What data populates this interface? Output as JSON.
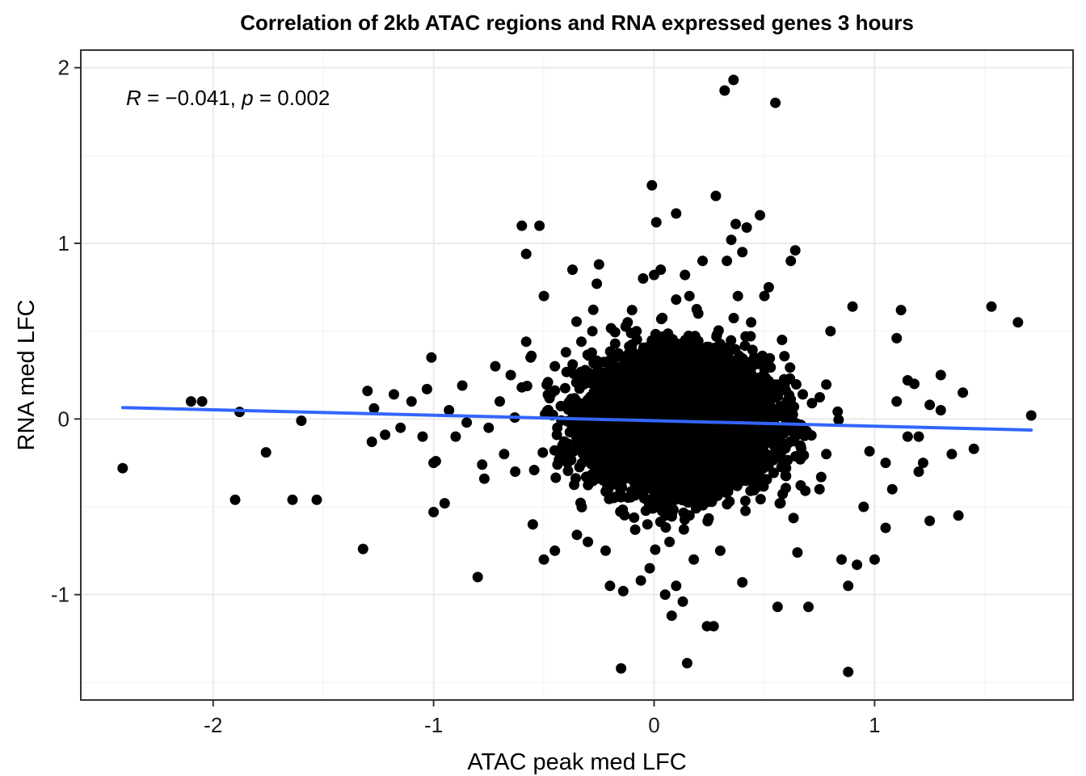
{
  "chart_data": {
    "type": "scatter",
    "title": "Correlation of 2kb ATAC regions and RNA expressed genes 3 hours",
    "xlabel": "ATAC peak med LFC",
    "ylabel": "RNA med LFC",
    "xlim": [
      -2.6,
      1.9
    ],
    "ylim": [
      -1.6,
      2.1
    ],
    "x_ticks": [
      -2,
      -1,
      0,
      1
    ],
    "y_ticks": [
      -1,
      0,
      1,
      2
    ],
    "x_tick_labels": [
      "-2",
      "-1",
      "0",
      "1"
    ],
    "y_tick_labels": [
      "-1",
      "0",
      "1",
      "2"
    ],
    "grid": true,
    "point_color": "#000000",
    "annotation": {
      "r_symbol": "R",
      "r_eq": " = ",
      "r_value": "−0.041",
      "sep": ", ",
      "p_symbol": "p",
      "p_eq": " = ",
      "p_value": "0.002"
    },
    "trend_line": {
      "color": "#3366ff",
      "x": [
        -2.41,
        1.71
      ],
      "y": [
        0.065,
        -0.063
      ]
    },
    "dense_cluster": {
      "description_count": 6000,
      "center": [
        0.12,
        -0.02
      ],
      "sd_x": 0.2,
      "sd_y": 0.18
    },
    "series": [
      {
        "points": [
          [
            -2.41,
            -0.28
          ],
          [
            -2.1,
            0.1
          ],
          [
            -2.05,
            0.1
          ],
          [
            -1.9,
            -0.46
          ],
          [
            -1.88,
            0.04
          ],
          [
            -1.76,
            -0.19
          ],
          [
            -1.64,
            -0.46
          ],
          [
            -1.6,
            -0.01
          ],
          [
            -1.53,
            -0.46
          ],
          [
            -1.32,
            -0.74
          ],
          [
            -1.3,
            0.16
          ],
          [
            -1.28,
            -0.13
          ],
          [
            -1.27,
            0.06
          ],
          [
            -1.22,
            -0.09
          ],
          [
            -1.18,
            0.14
          ],
          [
            -1.15,
            -0.05
          ],
          [
            -1.1,
            0.1
          ],
          [
            -1.05,
            -0.1
          ],
          [
            -1.03,
            0.17
          ],
          [
            -1.0,
            -0.25
          ],
          [
            -1.01,
            0.35
          ],
          [
            -1.0,
            -0.53
          ],
          [
            -0.99,
            -0.24
          ],
          [
            -0.95,
            -0.48
          ],
          [
            -0.93,
            0.05
          ],
          [
            -0.9,
            -0.1
          ],
          [
            -0.87,
            0.19
          ],
          [
            -0.85,
            -0.02
          ],
          [
            -0.8,
            -0.9
          ],
          [
            -0.78,
            -0.26
          ],
          [
            -0.77,
            -0.34
          ],
          [
            -0.75,
            -0.05
          ],
          [
            -0.72,
            0.3
          ],
          [
            -0.7,
            0.1
          ],
          [
            -0.68,
            -0.2
          ],
          [
            -0.65,
            0.25
          ],
          [
            -0.63,
            -0.3
          ],
          [
            -0.6,
            0.18
          ],
          [
            -0.58,
            0.44
          ],
          [
            -0.56,
            0.35
          ],
          [
            -0.6,
            1.1
          ],
          [
            -0.58,
            0.94
          ],
          [
            -0.52,
            1.1
          ],
          [
            -0.55,
            -0.6
          ],
          [
            -0.5,
            0.7
          ],
          [
            -0.5,
            -0.8
          ],
          [
            -0.45,
            -0.75
          ],
          [
            -0.45,
            0.3
          ],
          [
            -0.4,
            0.38
          ],
          [
            -0.37,
            0.85
          ],
          [
            -0.35,
            -0.66
          ],
          [
            -0.33,
            0.44
          ],
          [
            -0.3,
            -0.7
          ],
          [
            -0.28,
            0.5
          ],
          [
            -0.26,
            0.77
          ],
          [
            -0.25,
            0.88
          ],
          [
            -0.22,
            -0.75
          ],
          [
            -0.2,
            -0.95
          ],
          [
            -0.15,
            -1.42
          ],
          [
            -0.14,
            -0.98
          ],
          [
            -0.12,
            0.55
          ],
          [
            -0.1,
            0.62
          ],
          [
            -0.08,
            0.5
          ],
          [
            -0.06,
            -0.92
          ],
          [
            -0.05,
            0.8
          ],
          [
            -0.03,
            -0.6
          ],
          [
            -0.02,
            -0.85
          ],
          [
            -0.01,
            1.33
          ],
          [
            0.0,
            0.82
          ],
          [
            0.01,
            1.12
          ],
          [
            0.03,
            0.85
          ],
          [
            0.05,
            -1.0
          ],
          [
            0.07,
            -0.7
          ],
          [
            0.08,
            -1.12
          ],
          [
            0.1,
            -0.95
          ],
          [
            0.1,
            0.68
          ],
          [
            0.1,
            1.17
          ],
          [
            0.13,
            -1.04
          ],
          [
            0.14,
            0.82
          ],
          [
            0.15,
            -1.39
          ],
          [
            0.16,
            0.7
          ],
          [
            0.18,
            -0.8
          ],
          [
            0.2,
            0.6
          ],
          [
            0.22,
            0.9
          ],
          [
            0.24,
            -1.18
          ],
          [
            0.27,
            -1.18
          ],
          [
            0.28,
            1.27
          ],
          [
            0.3,
            -0.75
          ],
          [
            0.32,
            1.87
          ],
          [
            0.33,
            0.9
          ],
          [
            0.35,
            1.02
          ],
          [
            0.36,
            1.93
          ],
          [
            0.37,
            1.11
          ],
          [
            0.38,
            0.7
          ],
          [
            0.4,
            0.95
          ],
          [
            0.4,
            -0.93
          ],
          [
            0.42,
            1.09
          ],
          [
            0.44,
            0.55
          ],
          [
            0.48,
            1.16
          ],
          [
            0.5,
            0.7
          ],
          [
            0.52,
            0.75
          ],
          [
            0.55,
            1.8
          ],
          [
            0.56,
            -1.07
          ],
          [
            0.58,
            0.45
          ],
          [
            0.62,
            0.9
          ],
          [
            0.64,
            0.96
          ],
          [
            0.65,
            -0.76
          ],
          [
            0.7,
            -1.07
          ],
          [
            0.75,
            -0.4
          ],
          [
            0.8,
            0.5
          ],
          [
            0.85,
            -0.8
          ],
          [
            0.88,
            -1.44
          ],
          [
            0.88,
            -0.95
          ],
          [
            0.9,
            0.64
          ],
          [
            0.92,
            -0.83
          ],
          [
            0.95,
            -0.5
          ],
          [
            1.0,
            -0.8
          ],
          [
            1.05,
            -0.62
          ],
          [
            1.1,
            0.46
          ],
          [
            1.12,
            0.62
          ],
          [
            1.15,
            -0.1
          ],
          [
            1.18,
            0.2
          ],
          [
            1.2,
            -0.3
          ],
          [
            1.25,
            -0.58
          ],
          [
            1.3,
            0.05
          ],
          [
            1.35,
            -0.2
          ],
          [
            1.38,
            -0.55
          ],
          [
            1.4,
            0.15
          ],
          [
            1.45,
            -0.17
          ],
          [
            1.53,
            0.64
          ],
          [
            1.65,
            0.55
          ],
          [
            1.71,
            0.02
          ],
          [
            1.3,
            0.25
          ],
          [
            1.25,
            0.08
          ],
          [
            1.2,
            -0.1
          ],
          [
            1.1,
            0.1
          ],
          [
            1.05,
            -0.25
          ],
          [
            1.08,
            -0.4
          ],
          [
            1.22,
            -0.25
          ],
          [
            1.15,
            0.22
          ]
        ]
      }
    ]
  }
}
